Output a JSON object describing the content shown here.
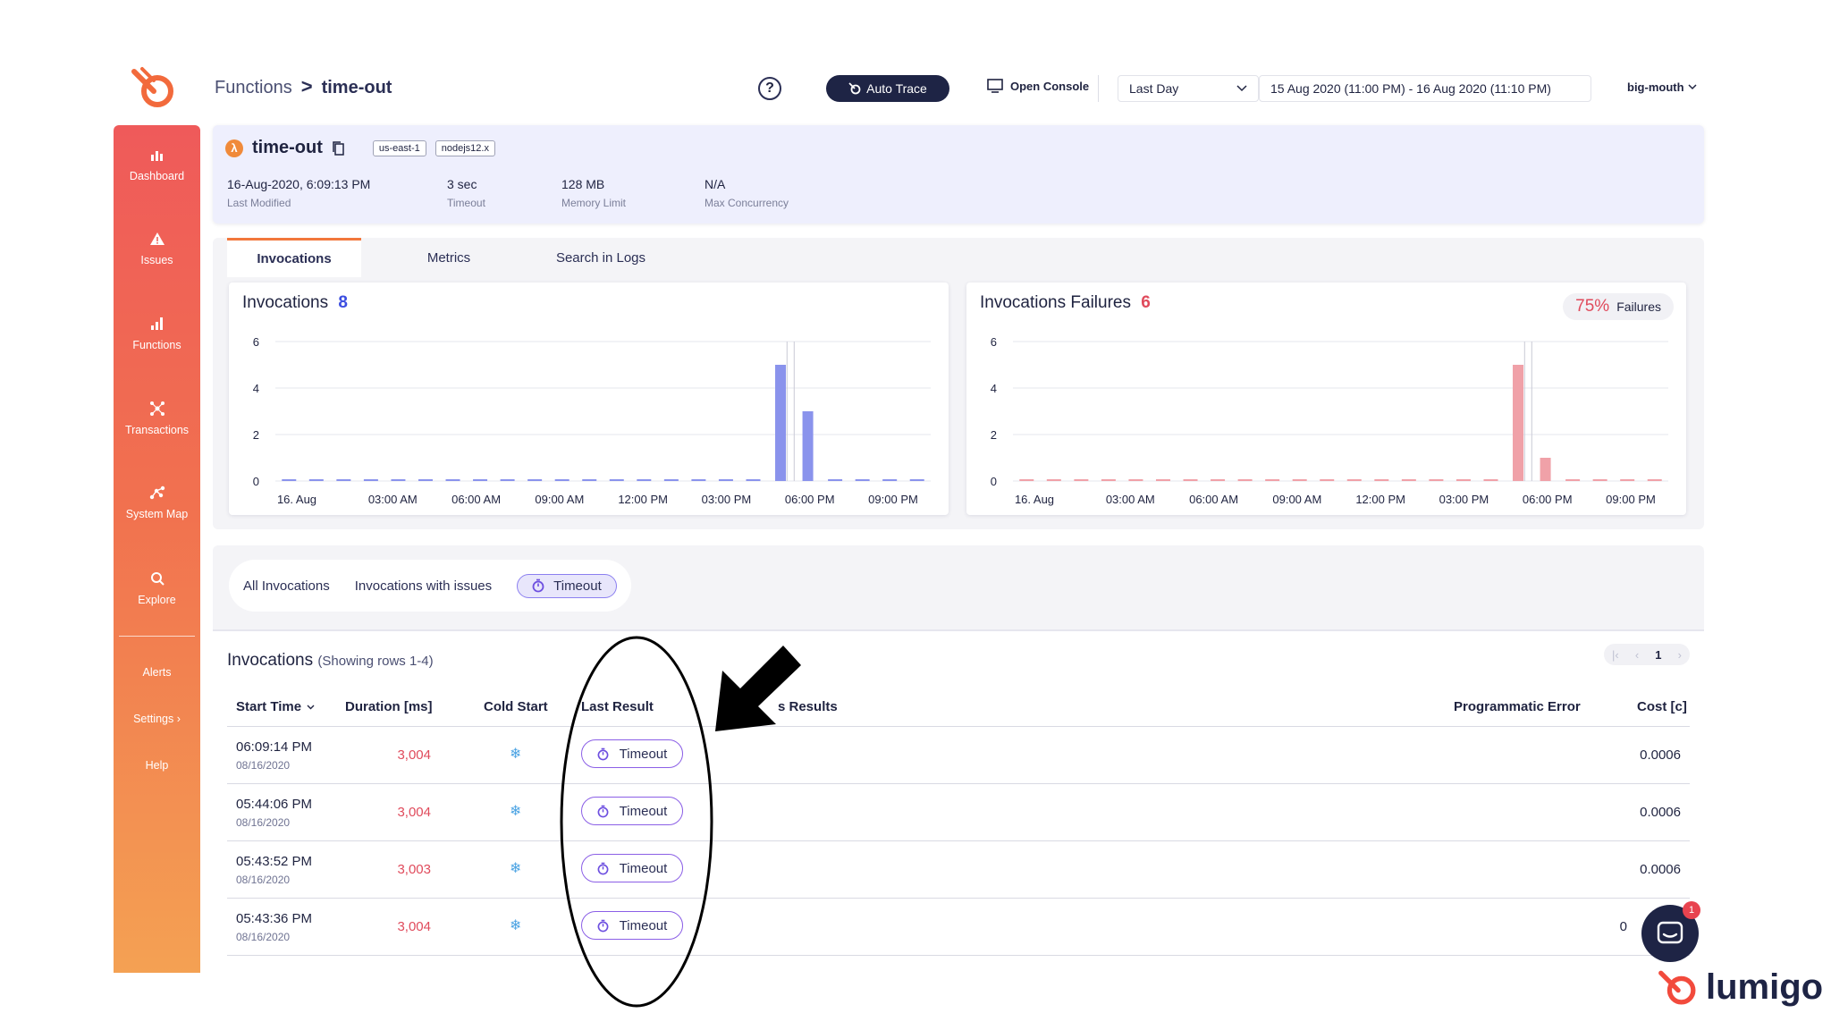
{
  "breadcrumb": {
    "root": "Functions",
    "sep": ">",
    "current": "time-out"
  },
  "topbar": {
    "help": "?",
    "auto_trace": "Auto Trace",
    "open_console": "Open Console",
    "range_select": "Last Day",
    "range_text": "15 Aug 2020 (11:00 PM) - 16 Aug 2020 (11:10 PM)",
    "account": "big-mouth"
  },
  "sidebar": {
    "items": [
      {
        "label": "Dashboard"
      },
      {
        "label": "Issues"
      },
      {
        "label": "Functions"
      },
      {
        "label": "Transactions"
      },
      {
        "label": "System Map"
      },
      {
        "label": "Explore"
      }
    ],
    "secondary": [
      {
        "label": "Alerts"
      },
      {
        "label": "Settings"
      },
      {
        "label": "Help"
      }
    ],
    "settings_chevron": "›"
  },
  "function": {
    "name": "time-out",
    "region": "us-east-1",
    "runtime": "nodejs12.x",
    "meta": [
      {
        "value": "16-Aug-2020, 6:09:13 PM",
        "label": "Last Modified"
      },
      {
        "value": "3 sec",
        "label": "Timeout"
      },
      {
        "value": "128 MB",
        "label": "Memory Limit"
      },
      {
        "value": "N/A",
        "label": "Max Concurrency"
      }
    ]
  },
  "tabs": [
    "Invocations",
    "Metrics",
    "Search in Logs"
  ],
  "charts_text": {
    "invocations_title": "Invocations",
    "invocations_count": "8",
    "failures_title": "Invocations Failures",
    "failures_count": "6",
    "failures_pct": "75%",
    "failures_label": "Failures"
  },
  "chart_data": [
    {
      "type": "bar",
      "title": "Invocations",
      "color": "#8a93ec",
      "yticks": [
        0,
        2,
        4,
        6
      ],
      "ylim": [
        0,
        6
      ],
      "xticks": [
        "16. Aug",
        "03:00 AM",
        "06:00 AM",
        "09:00 AM",
        "12:00 PM",
        "03:00 PM",
        "06:00 PM",
        "09:00 PM"
      ],
      "values": [
        0,
        0,
        0,
        0,
        0,
        0,
        0,
        0,
        0,
        0,
        0,
        0,
        0,
        0,
        0,
        0,
        0,
        0,
        5,
        3,
        0,
        0,
        0,
        0
      ],
      "grid": true
    },
    {
      "type": "bar",
      "title": "Invocations Failures",
      "color": "#f0a1a8",
      "yticks": [
        0,
        2,
        4,
        6
      ],
      "ylim": [
        0,
        6
      ],
      "xticks": [
        "16. Aug",
        "03:00 AM",
        "06:00 AM",
        "09:00 AM",
        "12:00 PM",
        "03:00 PM",
        "06:00 PM",
        "09:00 PM"
      ],
      "values": [
        0,
        0,
        0,
        0,
        0,
        0,
        0,
        0,
        0,
        0,
        0,
        0,
        0,
        0,
        0,
        0,
        0,
        0,
        5,
        1,
        0,
        0,
        0,
        0
      ],
      "grid": true
    }
  ],
  "filters": {
    "all": "All Invocations",
    "issues": "Invocations with issues",
    "timeout": "Timeout"
  },
  "invocations": {
    "title": "Invocations",
    "subtitle": "(Showing rows 1-4)",
    "page": "1",
    "columns": {
      "start": "Start Time",
      "duration": "Duration [ms]",
      "cold": "Cold Start",
      "result": "Last Result",
      "results": "s Results",
      "prog_error": "Programmatic Error",
      "cost": "Cost [c]"
    },
    "rows": [
      {
        "time": "06:09:14 PM",
        "date": "08/16/2020",
        "duration": "3,004",
        "result": "Timeout",
        "cost": "0.0006"
      },
      {
        "time": "05:44:06 PM",
        "date": "08/16/2020",
        "duration": "3,004",
        "result": "Timeout",
        "cost": "0.0006"
      },
      {
        "time": "05:43:52 PM",
        "date": "08/16/2020",
        "duration": "3,003",
        "result": "Timeout",
        "cost": "0.0006"
      },
      {
        "time": "05:43:36 PM",
        "date": "08/16/2020",
        "duration": "3,004",
        "result": "Timeout",
        "cost": "0"
      }
    ]
  },
  "chat_badge": "1",
  "brand": "lumigo"
}
